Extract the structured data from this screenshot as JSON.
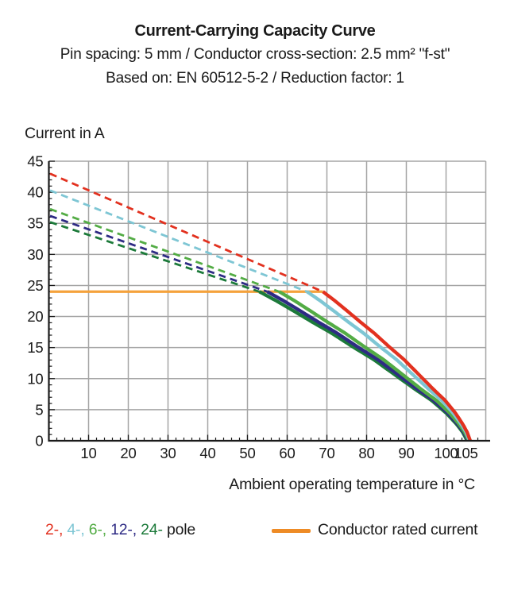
{
  "header": {
    "title": "Current-Carrying Capacity Curve",
    "subtitle1": "Pin spacing: 5 mm / Conductor cross-section: 2.5 mm² \"f-st\"",
    "subtitle2": "Based on: EN 60512-5-2 / Reduction factor: 1"
  },
  "chart_data": {
    "type": "line",
    "title": "Current-Carrying Capacity Curve",
    "xlabel": "Ambient operating temperature in °C",
    "ylabel": "Current in A",
    "xlim": [
      0,
      110
    ],
    "ylim": [
      0,
      45
    ],
    "x_major_ticks": [
      10,
      20,
      30,
      40,
      50,
      60,
      70,
      80,
      90,
      100,
      105
    ],
    "y_major_ticks": [
      0,
      5,
      10,
      15,
      20,
      25,
      30,
      35,
      40,
      45
    ],
    "x_minor_step": 2,
    "y_minor_step": 1,
    "grid": {
      "x_step": 10,
      "y_step": 5,
      "color": "#A5A5A5"
    },
    "axis_color": "#1A1A1A",
    "rated_current": {
      "value": 24,
      "x_start": 0,
      "x_end": 69,
      "color": "#F5A23C",
      "label": "Conductor rated current"
    },
    "series": [
      {
        "name": "24-pole",
        "legend_label": "24-",
        "color": "#1C7A3A",
        "current_at_0C": 35.2,
        "derate_knee_C": 53,
        "zero_current_C": 105.3,
        "dashed_segment": [
          [
            0,
            35.2
          ],
          [
            53,
            24
          ]
        ]
      },
      {
        "name": "12-pole",
        "legend_label": "12-",
        "color": "#2E2B84",
        "current_at_0C": 36.2,
        "derate_knee_C": 55,
        "zero_current_C": 105.5,
        "dashed_segment": [
          [
            0,
            36.2
          ],
          [
            55,
            24
          ]
        ]
      },
      {
        "name": "6-pole",
        "legend_label": "6-",
        "color": "#53AC45",
        "current_at_0C": 37.3,
        "derate_knee_C": 58,
        "zero_current_C": 105.7,
        "dashed_segment": [
          [
            0,
            37.3
          ],
          [
            58,
            24
          ]
        ]
      },
      {
        "name": "4-pole",
        "legend_label": "4-",
        "color": "#7EC6D4",
        "current_at_0C": 40.3,
        "derate_knee_C": 65,
        "zero_current_C": 105.9,
        "dashed_segment": [
          [
            0,
            40.3
          ],
          [
            65,
            24
          ]
        ]
      },
      {
        "name": "2-pole",
        "legend_label": "2-",
        "color": "#E2311F",
        "current_at_0C": 43.0,
        "derate_knee_C": 69,
        "zero_current_C": 106.1,
        "dashed_segment": [
          [
            0,
            43.0
          ],
          [
            69,
            24
          ]
        ]
      }
    ],
    "solid_curve_profile": {
      "u": [
        0,
        0.08,
        0.16,
        0.25,
        0.35,
        0.45,
        0.55,
        0.65,
        0.75,
        0.83,
        0.9,
        0.95,
        0.98,
        1
      ],
      "f": [
        1,
        0.94,
        0.875,
        0.8,
        0.72,
        0.63,
        0.545,
        0.445,
        0.345,
        0.27,
        0.185,
        0.11,
        0.055,
        0
      ]
    }
  },
  "legend": {
    "pole_items": [
      {
        "label": "2-",
        "color": "#E2311F"
      },
      {
        "label": "4-",
        "color": "#7EC6D4"
      },
      {
        "label": "6-",
        "color": "#53AC45"
      },
      {
        "label": "12-",
        "color": "#2E2B84"
      },
      {
        "label": "24-",
        "color": "#1C7A3A"
      }
    ],
    "separator": ", ",
    "suffix": " pole",
    "rated_label": "Conductor rated current",
    "rated_swatch_color": "#EE8B25"
  }
}
